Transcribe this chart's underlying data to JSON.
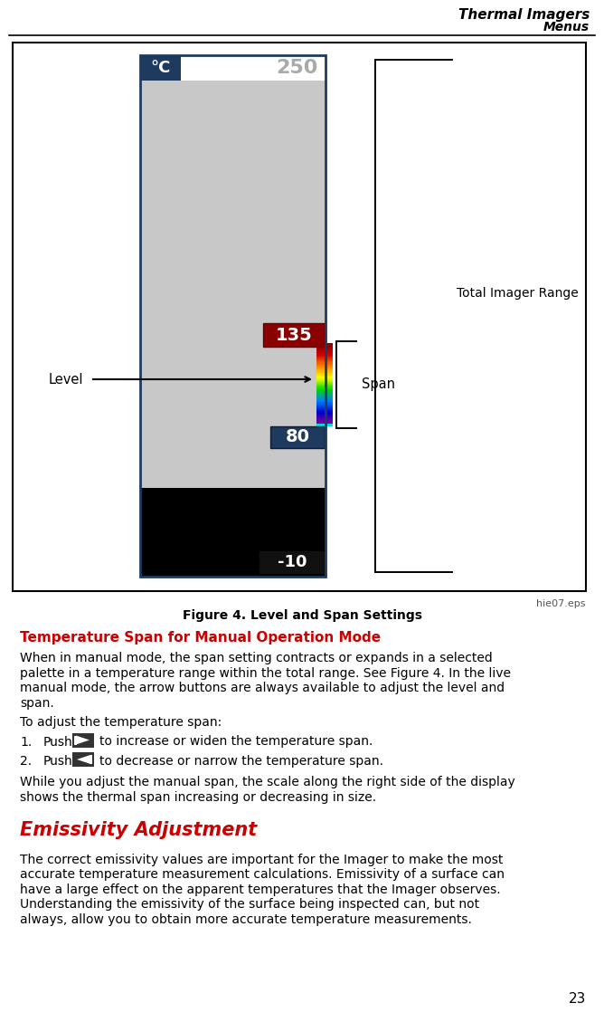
{
  "header_title": "Thermal Imagers",
  "header_subtitle": "Menus",
  "figure_caption": "Figure 4. Level and Span Settings",
  "file_ref": "hie07.eps",
  "page_number": "23",
  "section_heading": "Temperature Span for Manual Operation Mode",
  "section_heading_color": "#cc0000",
  "body_text_1a": "When in manual mode, the span setting contracts or expands in a selected",
  "body_text_1b": "palette in a temperature range within the total range. See Figure 4. In the live",
  "body_text_1c": "manual mode, the arrow buttons are always available to adjust the level and",
  "body_text_1d": "span.",
  "body_text_2": "To adjust the temperature span:",
  "list_num_1": "1.",
  "list_text_1a": "Push",
  "list_text_1b": "to increase or widen the temperature span.",
  "list_num_2": "2.",
  "list_text_2a": "Push",
  "list_text_2b": "to decrease or narrow the temperature span.",
  "body_text_3a": "While you adjust the manual span, the scale along the right side of the display",
  "body_text_3b": "shows the thermal span increasing or decreasing in size.",
  "section_heading_2": "Emissivity Adjustment",
  "section_heading_2_color": "#cc0000",
  "body_text_4a": "The correct emissivity values are important for the Imager to make the most",
  "body_text_4b": "accurate temperature measurement calculations. Emissivity of a surface can",
  "body_text_4c": "have a large effect on the apparent temperatures that the Imager observes.",
  "body_text_4d": "Understanding the emissivity of the surface being inspected can, but not",
  "body_text_4e": "always, allow you to obtain more accurate temperature measurements.",
  "temp_250": "250",
  "temp_135": "135",
  "temp_80": "80",
  "temp_neg10": "-10",
  "label_level": "Level",
  "label_span": "Span",
  "label_total_range": "Total Imager Range",
  "unit_label": "°C",
  "bg_color": "#ffffff",
  "diagram_bg": "#c8c8c8",
  "diagram_border": "#000000",
  "blue_dark": "#1e3a5f",
  "red_dark": "#8b0000"
}
